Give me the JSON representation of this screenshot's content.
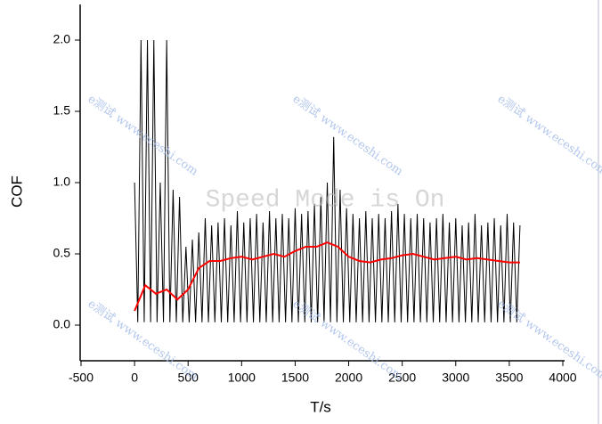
{
  "chart_data": {
    "type": "line",
    "x_label": "T/s",
    "y_label": "COF",
    "xlim": [
      -500,
      4000
    ],
    "xticks": [
      -500,
      0,
      500,
      1000,
      1500,
      2000,
      2500,
      3000,
      3500,
      4000
    ],
    "ylim": [
      -0.25,
      2.25
    ],
    "yticks": [
      {
        "value": 0,
        "label": "0.0"
      },
      {
        "value": 0.5,
        "label": "0.5"
      },
      {
        "value": 1,
        "label": "1.0"
      },
      {
        "value": 1.5,
        "label": "1.5"
      },
      {
        "value": 2,
        "label": "2.0"
      }
    ],
    "series": [
      {
        "color": "#000000",
        "x": [
          0,
          30,
          60,
          90,
          120,
          150,
          180,
          210,
          240,
          270,
          300,
          330,
          360,
          390,
          420,
          450,
          480,
          510,
          540,
          570,
          600,
          630,
          660,
          690,
          720,
          750,
          780,
          810,
          840,
          870,
          900,
          930,
          960,
          990,
          1020,
          1050,
          1080,
          1110,
          1140,
          1170,
          1200,
          1230,
          1260,
          1290,
          1320,
          1350,
          1380,
          1410,
          1440,
          1470,
          1500,
          1530,
          1560,
          1590,
          1620,
          1650,
          1680,
          1710,
          1740,
          1770,
          1800,
          1830,
          1860,
          1890,
          1920,
          1950,
          1980,
          2010,
          2040,
          2070,
          2100,
          2130,
          2160,
          2190,
          2220,
          2250,
          2280,
          2310,
          2340,
          2370,
          2400,
          2430,
          2460,
          2490,
          2520,
          2550,
          2580,
          2610,
          2640,
          2670,
          2700,
          2730,
          2760,
          2790,
          2820,
          2850,
          2880,
          2910,
          2940,
          2970,
          3000,
          3030,
          3060,
          3090,
          3120,
          3150,
          3180,
          3210,
          3240,
          3270,
          3300,
          3330,
          3360,
          3390,
          3420,
          3450,
          3480,
          3510,
          3540,
          3570,
          3600
        ],
        "values": [
          1.0,
          0.02,
          2.0,
          0.02,
          2.0,
          0.02,
          2.0,
          0.02,
          1.0,
          0.02,
          2.0,
          0.02,
          0.95,
          0.02,
          0.9,
          0.02,
          0.55,
          0.02,
          0.6,
          0.02,
          0.65,
          0.02,
          0.75,
          0.02,
          0.7,
          0.02,
          0.72,
          0.02,
          0.75,
          0.02,
          0.7,
          0.02,
          0.8,
          0.02,
          0.72,
          0.02,
          0.75,
          0.02,
          0.78,
          0.02,
          0.72,
          0.02,
          0.8,
          0.02,
          0.75,
          0.02,
          0.78,
          0.02,
          0.75,
          0.02,
          0.82,
          0.02,
          0.78,
          0.02,
          0.8,
          0.02,
          0.85,
          0.02,
          0.9,
          0.02,
          1.0,
          0.02,
          1.32,
          0.02,
          0.95,
          0.02,
          0.82,
          0.02,
          0.78,
          0.02,
          0.75,
          0.02,
          0.8,
          0.02,
          0.75,
          0.02,
          0.78,
          0.02,
          0.75,
          0.02,
          0.8,
          0.02,
          0.85,
          0.02,
          0.78,
          0.02,
          0.75,
          0.02,
          0.78,
          0.02,
          0.75,
          0.02,
          0.72,
          0.02,
          0.75,
          0.02,
          0.78,
          0.02,
          0.72,
          0.02,
          0.75,
          0.02,
          0.7,
          0.02,
          0.72,
          0.02,
          0.78,
          0.02,
          0.7,
          0.02,
          0.72,
          0.02,
          0.75,
          0.02,
          0.7,
          0.02,
          0.78,
          0.02,
          0.72,
          0.02,
          0.7
        ]
      },
      {
        "color": "#ff0000",
        "x": [
          0,
          100,
          200,
          300,
          400,
          500,
          600,
          700,
          800,
          900,
          1000,
          1100,
          1200,
          1300,
          1400,
          1500,
          1600,
          1700,
          1800,
          1900,
          2000,
          2100,
          2200,
          2300,
          2400,
          2500,
          2600,
          2700,
          2800,
          2900,
          3000,
          3100,
          3200,
          3300,
          3400,
          3500,
          3600
        ],
        "values": [
          0.1,
          0.28,
          0.22,
          0.25,
          0.18,
          0.25,
          0.4,
          0.45,
          0.45,
          0.47,
          0.48,
          0.46,
          0.48,
          0.5,
          0.48,
          0.52,
          0.55,
          0.55,
          0.58,
          0.55,
          0.48,
          0.45,
          0.44,
          0.46,
          0.47,
          0.49,
          0.5,
          0.48,
          0.46,
          0.47,
          0.48,
          0.46,
          0.47,
          0.46,
          0.45,
          0.44,
          0.44
        ]
      }
    ],
    "overlay": "Speed Mode is On",
    "watermarks": [
      "e测试 www.eceshi.com",
      "e测试 www.eceshi.com",
      "e测试 www.eceshi.com",
      "e测试 www.eceshi.com",
      "e测试 www.eceshi.com",
      "e测试 www.eceshi.com"
    ]
  }
}
